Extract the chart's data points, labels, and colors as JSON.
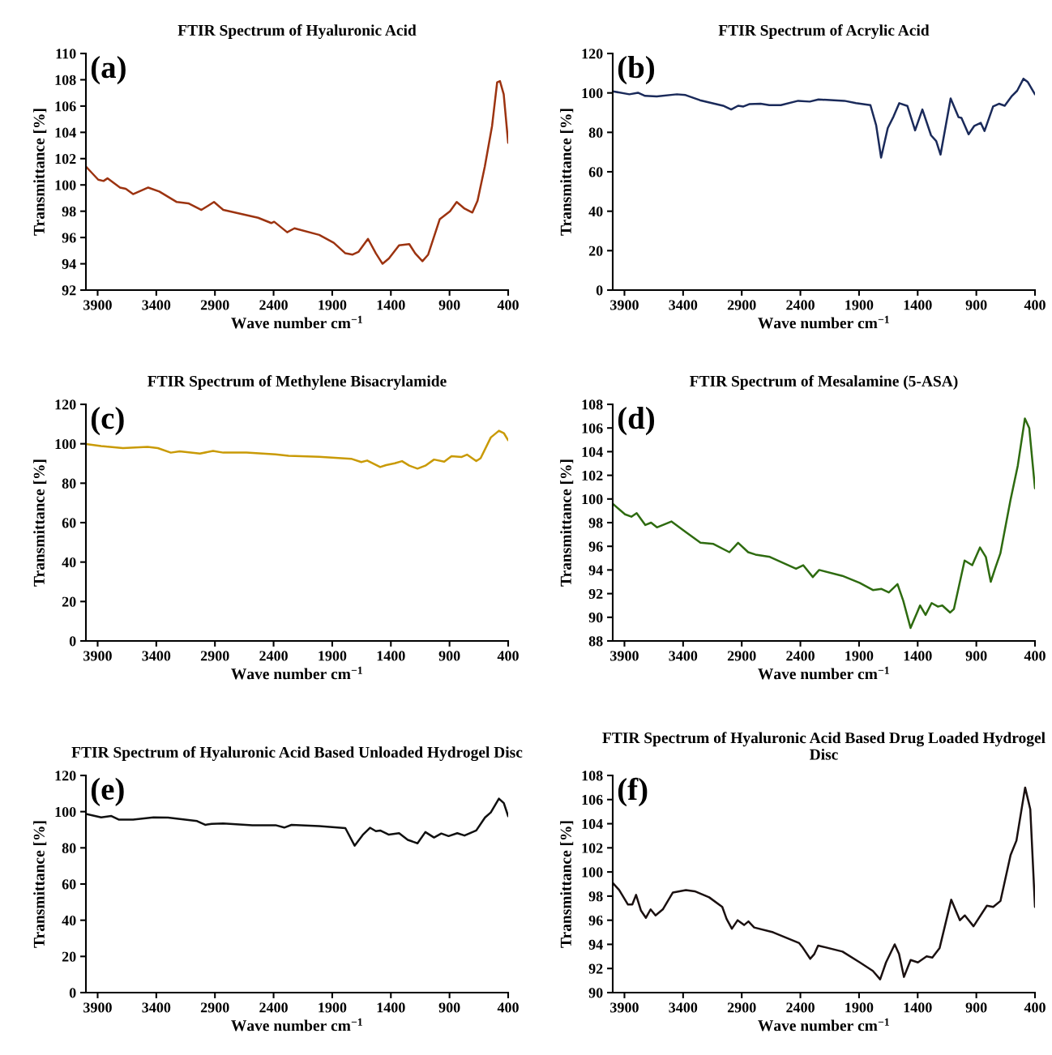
{
  "chart_data": [
    {
      "type": "line",
      "title": "FTIR Spectrum of Hyaluronic Acid",
      "xlabel": "Wave number cm$^{−1}$",
      "ylabel": "Transmittance [%]",
      "annotations": [
        "(a)"
      ],
      "xlim": [
        4000,
        400
      ],
      "xticks": [
        3900,
        3400,
        2900,
        2400,
        1900,
        1400,
        900,
        400
      ],
      "ylim": [
        92,
        110
      ],
      "yticks": [
        92,
        94,
        96,
        98,
        100,
        102,
        104,
        106,
        108,
        110
      ],
      "x": [
        4000,
        3895,
        3850,
        3816,
        3709,
        3660,
        3598,
        3469,
        3374,
        3225,
        3127,
        3015,
        2908,
        2829,
        2730,
        2532,
        2420,
        2395,
        2284,
        2222,
        2011,
        1887,
        1788,
        1726,
        1677,
        1595,
        1528,
        1471,
        1417,
        1330,
        1243,
        1193,
        1131,
        1082,
        983,
        896,
        839,
        772,
        705,
        661,
        599,
        537,
        494,
        470,
        438,
        400
      ],
      "series": [
        {
          "color": "#9c3310",
          "values": [
            101.4,
            100.4,
            100.3,
            100.5,
            99.8,
            99.7,
            99.3,
            99.8,
            99.5,
            98.7,
            98.6,
            98.1,
            98.7,
            98.1,
            97.9,
            97.5,
            97.1,
            97.2,
            96.4,
            96.7,
            96.2,
            95.6,
            94.8,
            94.7,
            94.9,
            95.9,
            94.8,
            94.0,
            94.4,
            95.4,
            95.5,
            94.8,
            94.2,
            94.7,
            97.4,
            98.0,
            98.7,
            98.2,
            97.9,
            98.8,
            101.4,
            104.5,
            107.8,
            107.9,
            106.9,
            103.2
          ]
        }
      ]
    },
    {
      "type": "line",
      "title": "FTIR Spectrum of Acrylic Acid",
      "xlabel": "Wave number cm$^{−1}$",
      "ylabel": "Transmittance [%]",
      "annotations": [
        "(b)"
      ],
      "xlim": [
        4000,
        400
      ],
      "xticks": [
        3900,
        3400,
        2900,
        2400,
        1900,
        1400,
        900,
        400
      ],
      "ylim": [
        0,
        120
      ],
      "yticks": [
        0,
        20,
        40,
        60,
        80,
        100,
        120
      ],
      "x": [
        4000,
        3858,
        3785,
        3724,
        3625,
        3453,
        3379,
        3256,
        3059,
        2990,
        2931,
        2886,
        2837,
        2739,
        2665,
        2567,
        2419,
        2320,
        2246,
        2025,
        1926,
        1803,
        1754,
        1712,
        1655,
        1606,
        1557,
        1488,
        1422,
        1360,
        1286,
        1242,
        1205,
        1119,
        1052,
        1027,
        966,
        917,
        862,
        830,
        757,
        707,
        658,
        596,
        552,
        498,
        461,
        400
      ],
      "series": [
        {
          "color": "#1a2a5a",
          "values": [
            100.8,
            99.3,
            100.1,
            98.5,
            98.2,
            99.3,
            98.9,
            96.3,
            93.5,
            91.6,
            93.5,
            93.1,
            94.3,
            94.5,
            93.8,
            93.8,
            96.0,
            95.6,
            96.7,
            96.0,
            94.8,
            93.8,
            83.6,
            67.2,
            82.2,
            88.0,
            94.8,
            93.4,
            81.0,
            91.6,
            78.5,
            75.6,
            68.7,
            97.2,
            87.7,
            87.3,
            79.0,
            83.3,
            84.8,
            80.7,
            93.1,
            94.5,
            93.5,
            98.5,
            101.1,
            107.2,
            105.5,
            99.3
          ]
        }
      ]
    },
    {
      "type": "line",
      "title": "FTIR Spectrum of Methylene Bisacrylamide",
      "xlabel": "Wave number cm$^{−1}$",
      "ylabel": "Transmittance [%]",
      "annotations": [
        "(c)"
      ],
      "xlim": [
        4000,
        400
      ],
      "xticks": [
        3900,
        3400,
        2900,
        2400,
        1900,
        1400,
        900,
        400
      ],
      "ylim": [
        0,
        120
      ],
      "yticks": [
        0,
        20,
        40,
        60,
        80,
        100,
        120
      ],
      "x": [
        4000,
        3870,
        3684,
        3474,
        3387,
        3276,
        3201,
        3028,
        2916,
        2829,
        2631,
        2383,
        2272,
        2011,
        1739,
        1652,
        1602,
        1491,
        1441,
        1367,
        1305,
        1243,
        1173,
        1106,
        1032,
        945,
        883,
        796,
        751,
        672,
        635,
        548,
        479,
        437,
        400
      ],
      "series": [
        {
          "color": "#c99a06",
          "values": [
            99.9,
            98.8,
            97.8,
            98.4,
            97.8,
            95.5,
            96.2,
            95.0,
            96.4,
            95.5,
            95.5,
            94.6,
            93.9,
            93.4,
            92.4,
            90.7,
            91.5,
            88.2,
            89.2,
            90.1,
            91.2,
            88.9,
            87.4,
            88.9,
            92.0,
            90.9,
            93.7,
            93.3,
            94.5,
            91.2,
            92.7,
            103.2,
            106.6,
            105.4,
            101.8
          ]
        }
      ]
    },
    {
      "type": "line",
      "title": "FTIR Spectrum of Mesalamine (5-ASA)",
      "xlabel": "Wave number cm$^{−1}$",
      "ylabel": "Transmittance [%]",
      "annotations": [
        "(d)"
      ],
      "xlim": [
        4000,
        400
      ],
      "xticks": [
        3900,
        3400,
        2900,
        2400,
        1900,
        1400,
        900,
        400
      ],
      "ylim": [
        88,
        108
      ],
      "yticks": [
        88,
        90,
        92,
        94,
        96,
        98,
        100,
        102,
        104,
        106,
        108
      ],
      "x": [
        4000,
        3895,
        3841,
        3796,
        3722,
        3673,
        3623,
        3500,
        3376,
        3252,
        3141,
        3005,
        2931,
        2845,
        2783,
        2660,
        2437,
        2376,
        2294,
        2240,
        2042,
        1894,
        1782,
        1708,
        1646,
        1572,
        1523,
        1461,
        1405,
        1380,
        1333,
        1281,
        1227,
        1190,
        1123,
        1091,
        1000,
        935,
        869,
        819,
        777,
        737,
        695,
        609,
        547,
        486,
        449,
        400
      ],
      "series": [
        {
          "color": "#2e6b10",
          "values": [
            99.6,
            98.7,
            98.5,
            98.8,
            97.8,
            98.0,
            97.6,
            98.1,
            97.2,
            96.3,
            96.2,
            95.5,
            96.3,
            95.5,
            95.3,
            95.1,
            94.1,
            94.4,
            93.4,
            94.0,
            93.5,
            92.9,
            92.3,
            92.4,
            92.1,
            92.8,
            91.4,
            89.1,
            90.4,
            91.0,
            90.2,
            91.2,
            90.9,
            91.0,
            90.4,
            90.7,
            94.8,
            94.4,
            95.9,
            95.1,
            93.0,
            94.2,
            95.4,
            99.9,
            102.8,
            106.8,
            106.0,
            100.9
          ]
        }
      ]
    },
    {
      "type": "line",
      "title": "FTIR Spectrum of Hyaluronic Acid Based Unloaded Hydrogel Disc",
      "xlabel": "Wave number cm$^{−1}$",
      "ylabel": "Transmittance [%]",
      "annotations": [
        "(e)"
      ],
      "xlim": [
        4000,
        400
      ],
      "xticks": [
        3900,
        3400,
        2900,
        2400,
        1900,
        1400,
        900,
        400
      ],
      "ylim": [
        0,
        120
      ],
      "yticks": [
        0,
        20,
        40,
        60,
        80,
        100,
        120
      ],
      "x": [
        4000,
        3870,
        3783,
        3721,
        3598,
        3424,
        3300,
        3052,
        2983,
        2928,
        2829,
        2581,
        2383,
        2309,
        2247,
        2011,
        1788,
        1709,
        1640,
        1578,
        1528,
        1491,
        1417,
        1330,
        1256,
        1173,
        1106,
        1032,
        970,
        908,
        834,
        772,
        672,
        598,
        548,
        479,
        437,
        400
      ],
      "series": [
        {
          "color": "#101010",
          "values": [
            98.8,
            96.8,
            97.6,
            95.6,
            95.6,
            96.8,
            96.7,
            94.8,
            92.7,
            93.2,
            93.5,
            92.5,
            92.5,
            91.2,
            92.7,
            92.0,
            90.9,
            81.2,
            87.1,
            91.1,
            89.2,
            89.6,
            87.3,
            88.1,
            84.4,
            82.5,
            88.7,
            85.7,
            87.9,
            86.5,
            88.1,
            86.8,
            89.6,
            96.7,
            99.6,
            107.2,
            104.7,
            97.5
          ]
        }
      ]
    },
    {
      "type": "line",
      "title": "FTIR Spectrum of Hyaluronic Acid Based Drug Loaded Hydrogel Disc",
      "xlabel": "Wave number cm$^{−1}$",
      "ylabel": "Transmittance [%]",
      "annotations": [
        "(f)"
      ],
      "xlim": [
        4000,
        400
      ],
      "xticks": [
        3900,
        3400,
        2900,
        2400,
        1900,
        1400,
        900,
        400
      ],
      "ylim": [
        90,
        108
      ],
      "yticks": [
        90,
        92,
        94,
        96,
        98,
        100,
        102,
        104,
        106,
        108
      ],
      "x": [
        4000,
        3945,
        3870,
        3833,
        3801,
        3759,
        3717,
        3677,
        3635,
        3573,
        3487,
        3376,
        3301,
        3178,
        3066,
        3029,
        2984,
        2935,
        2880,
        2843,
        2794,
        2633,
        2410,
        2385,
        2316,
        2281,
        2249,
        2041,
        1893,
        1782,
        1720,
        1670,
        1596,
        1559,
        1517,
        1460,
        1398,
        1324,
        1275,
        1213,
        1114,
        1040,
        998,
        924,
        810,
        756,
        694,
        608,
        558,
        484,
        440,
        400
      ],
      "series": [
        {
          "color": "#1a1010",
          "values": [
            99.1,
            98.5,
            97.3,
            97.3,
            98.1,
            96.8,
            96.2,
            96.9,
            96.4,
            96.9,
            98.3,
            98.5,
            98.4,
            97.9,
            97.1,
            96.1,
            95.3,
            96.0,
            95.6,
            95.9,
            95.4,
            95.0,
            94.1,
            93.8,
            92.8,
            93.2,
            93.9,
            93.4,
            92.5,
            91.8,
            91.1,
            92.5,
            94.0,
            93.2,
            91.3,
            92.7,
            92.5,
            93.0,
            92.9,
            93.7,
            97.7,
            96.0,
            96.4,
            95.5,
            97.2,
            97.1,
            97.6,
            101.4,
            102.6,
            107.0,
            105.2,
            97.1
          ]
        }
      ]
    }
  ]
}
